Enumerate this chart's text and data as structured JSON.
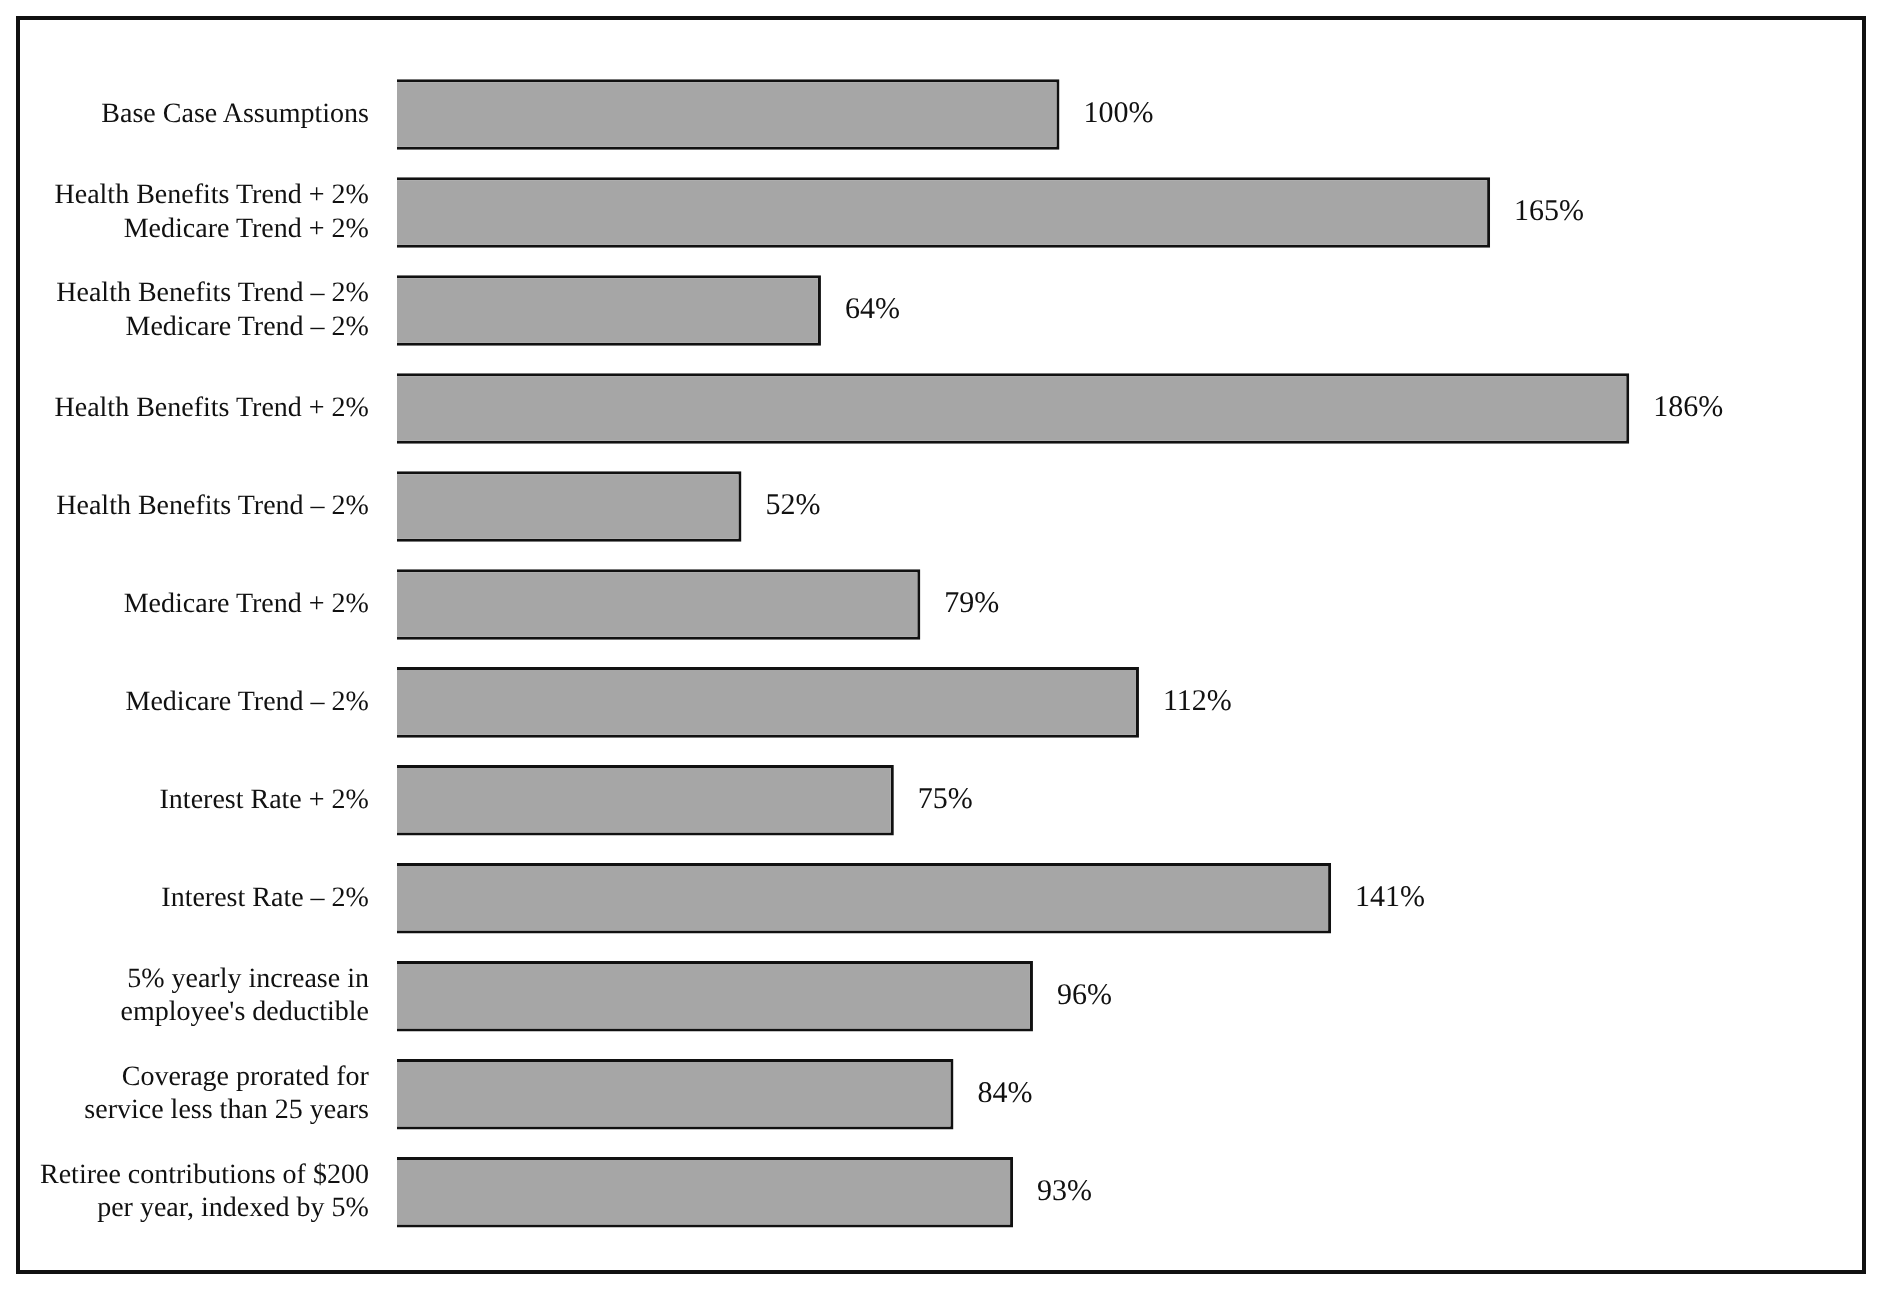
{
  "chart_data": {
    "type": "bar",
    "orientation": "horizontal",
    "categories": [
      "Base Case Assumptions",
      "Health Benefits Trend + 2%\nMedicare Trend + 2%",
      "Health Benefits Trend – 2%\nMedicare Trend – 2%",
      "Health Benefits Trend + 2%",
      "Health Benefits Trend – 2%",
      "Medicare Trend + 2%",
      "Medicare Trend – 2%",
      "Interest Rate + 2%",
      "Interest Rate – 2%",
      "5% yearly increase in\nemployee's deductible",
      "Coverage prorated for\nservice less than 25 years",
      "Retiree contributions of $200\nper year, indexed by 5%"
    ],
    "values": [
      100,
      165,
      64,
      186,
      52,
      79,
      112,
      75,
      141,
      96,
      84,
      93
    ],
    "value_labels": [
      "100%",
      "165%",
      "64%",
      "186%",
      "52%",
      "79%",
      "112%",
      "75%",
      "141%",
      "96%",
      "84%",
      "93%"
    ],
    "color": "#a6a6a6",
    "legend": false
  }
}
